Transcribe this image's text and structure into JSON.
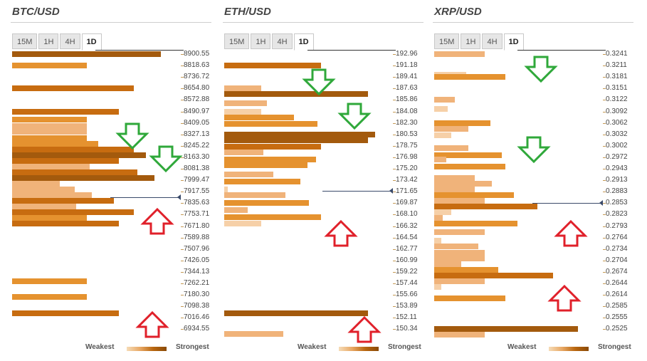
{
  "tabs": [
    "15M",
    "1H",
    "4H",
    "1D"
  ],
  "active_tab": "1D",
  "legend": {
    "weakest": "Weakest",
    "strongest": "Strongest"
  },
  "colors": {
    "weak": "#f6d0a8",
    "light": "#f0b37a",
    "medium": "#e5922f",
    "strong": "#c76c10",
    "strongest": "#a35a0d",
    "arrow_down": "#2fa83a",
    "arrow_up": "#e0202a"
  },
  "panels": [
    {
      "title": "BTC/USD",
      "levels": [
        "8900.55",
        "8818.63",
        "8736.72",
        "8654.80",
        "8572.88",
        "8490.97",
        "8409.05",
        "8327.13",
        "8245.22",
        "8163.30",
        "8081.38",
        "7999.47",
        "7917.55",
        "7835.63",
        "7753.71",
        "7671.80",
        "7589.88",
        "7507.96",
        "7426.05",
        "7344.13",
        "7262.21",
        "7180.30",
        "7098.38",
        "7016.46",
        "6934.55"
      ],
      "current_level_index": 12.5,
      "bars": [
        [
          0,
          0.88,
          "strongest"
        ],
        [
          1,
          0.44,
          "medium"
        ],
        [
          3,
          0.72,
          "strong"
        ],
        [
          5,
          0.63,
          "strong"
        ],
        [
          5.7,
          0.44,
          "medium"
        ],
        [
          6.3,
          0.44,
          "light"
        ],
        [
          6.8,
          0.44,
          "light"
        ],
        [
          7.3,
          0.44,
          "medium"
        ],
        [
          7.8,
          0.51,
          "medium"
        ],
        [
          8.3,
          0.72,
          "strong"
        ],
        [
          8.8,
          0.79,
          "strongest"
        ],
        [
          9.3,
          0.63,
          "strong"
        ],
        [
          9.8,
          0.46,
          "light"
        ],
        [
          10.3,
          0.74,
          "strong"
        ],
        [
          10.8,
          0.84,
          "strongest"
        ],
        [
          11.3,
          0.28,
          "light"
        ],
        [
          11.8,
          0.37,
          "light"
        ],
        [
          12.3,
          0.47,
          "light"
        ],
        [
          12.8,
          0.6,
          "strong"
        ],
        [
          13.3,
          0.38,
          "light"
        ],
        [
          13.8,
          0.72,
          "strong"
        ],
        [
          14.3,
          0.44,
          "medium"
        ],
        [
          14.8,
          0.63,
          "strong"
        ],
        [
          19.8,
          0.44,
          "medium"
        ],
        [
          21.2,
          0.44,
          "medium"
        ],
        [
          22.6,
          0.63,
          "strong"
        ]
      ],
      "arrows": [
        [
          "down",
          7,
          0.7
        ],
        [
          "down",
          9,
          0.9
        ],
        [
          "up",
          14.5,
          0.85
        ],
        [
          "up",
          23.5,
          0.82
        ]
      ]
    },
    {
      "title": "ETH/USD",
      "levels": [
        "192.96",
        "191.18",
        "189.41",
        "187.63",
        "185.86",
        "184.08",
        "182.30",
        "180.53",
        "178.75",
        "176.98",
        "175.20",
        "173.42",
        "171.65",
        "169.87",
        "168.10",
        "166.32",
        "164.54",
        "162.77",
        "160.99",
        "159.22",
        "157.44",
        "155.66",
        "153.89",
        "152.11",
        "150.34"
      ],
      "current_level_index": 11.9,
      "bars": [
        [
          1,
          0.57,
          "strong"
        ],
        [
          3,
          0.22,
          "light"
        ],
        [
          3.5,
          0.85,
          "strongest"
        ],
        [
          4.3,
          0.25,
          "light"
        ],
        [
          5,
          0.22,
          "weak"
        ],
        [
          5.5,
          0.41,
          "medium"
        ],
        [
          6.1,
          0.55,
          "medium"
        ],
        [
          7,
          0.89,
          "strongest"
        ],
        [
          7.5,
          0.85,
          "strongest"
        ],
        [
          8.1,
          0.57,
          "strong"
        ],
        [
          8.6,
          0.23,
          "light"
        ],
        [
          9.2,
          0.54,
          "medium"
        ],
        [
          9.7,
          0.49,
          "medium"
        ],
        [
          10.5,
          0.29,
          "light"
        ],
        [
          11.1,
          0.45,
          "medium"
        ],
        [
          11.8,
          0.02,
          "weak"
        ],
        [
          12.3,
          0.36,
          "light"
        ],
        [
          13,
          0.5,
          "medium"
        ],
        [
          13.6,
          0.14,
          "light"
        ],
        [
          14.2,
          0.57,
          "medium"
        ],
        [
          14.8,
          0.22,
          "weak"
        ],
        [
          22.6,
          0.85,
          "strongest"
        ],
        [
          24.4,
          0.35,
          "light"
        ]
      ],
      "arrows": [
        [
          "down",
          2.3,
          0.55
        ],
        [
          "down",
          5.3,
          0.76
        ],
        [
          "up",
          15.5,
          0.68
        ],
        [
          "up",
          23.9,
          0.82
        ]
      ]
    },
    {
      "title": "XRP/USD",
      "levels": [
        "0.3241",
        "0.3211",
        "0.3181",
        "0.3151",
        "0.3122",
        "0.3092",
        "0.3062",
        "0.3032",
        "0.3002",
        "0.2972",
        "0.2943",
        "0.2913",
        "0.2883",
        "0.2853",
        "0.2823",
        "0.2793",
        "0.2764",
        "0.2734",
        "0.2704",
        "0.2674",
        "0.2644",
        "0.2614",
        "0.2585",
        "0.2555",
        "0.2525"
      ],
      "current_level_index": 13,
      "bars": [
        [
          0,
          0.3,
          "light"
        ],
        [
          1.8,
          0.19,
          "weak"
        ],
        [
          2,
          0.42,
          "medium"
        ],
        [
          4,
          0.12,
          "light"
        ],
        [
          4.8,
          0.08,
          "weak"
        ],
        [
          6,
          0.33,
          "medium"
        ],
        [
          6.5,
          0.2,
          "light"
        ],
        [
          7.1,
          0.1,
          "weak"
        ],
        [
          8.2,
          0.2,
          "light"
        ],
        [
          8.8,
          0.4,
          "medium"
        ],
        [
          9.2,
          0.07,
          "light"
        ],
        [
          9.8,
          0.42,
          "medium"
        ],
        [
          10.8,
          0.24,
          "light"
        ],
        [
          11.3,
          0.34,
          "light"
        ],
        [
          11.8,
          0.24,
          "light"
        ],
        [
          12.3,
          0.47,
          "medium"
        ],
        [
          12.8,
          0.3,
          "light"
        ],
        [
          13.3,
          0.61,
          "strong"
        ],
        [
          13.8,
          0.1,
          "weak"
        ],
        [
          14.3,
          0.05,
          "light"
        ],
        [
          14.8,
          0.49,
          "medium"
        ],
        [
          15.5,
          0.3,
          "light"
        ],
        [
          16.3,
          0.04,
          "weak"
        ],
        [
          16.8,
          0.26,
          "light"
        ],
        [
          17.3,
          0.3,
          "light"
        ],
        [
          17.8,
          0.3,
          "light"
        ],
        [
          18.3,
          0.16,
          "light"
        ],
        [
          18.8,
          0.38,
          "medium"
        ],
        [
          19.3,
          0.7,
          "strong"
        ],
        [
          19.8,
          0.3,
          "light"
        ],
        [
          20.3,
          0.04,
          "weak"
        ],
        [
          21.3,
          0.42,
          "medium"
        ],
        [
          24,
          0.85,
          "strongest"
        ],
        [
          24.5,
          0.3,
          "light"
        ]
      ],
      "arrows": [
        [
          "down",
          1.2,
          0.62
        ],
        [
          "down",
          8.2,
          0.58
        ],
        [
          "up",
          15.5,
          0.8
        ],
        [
          "up",
          21.2,
          0.76
        ]
      ]
    }
  ]
}
